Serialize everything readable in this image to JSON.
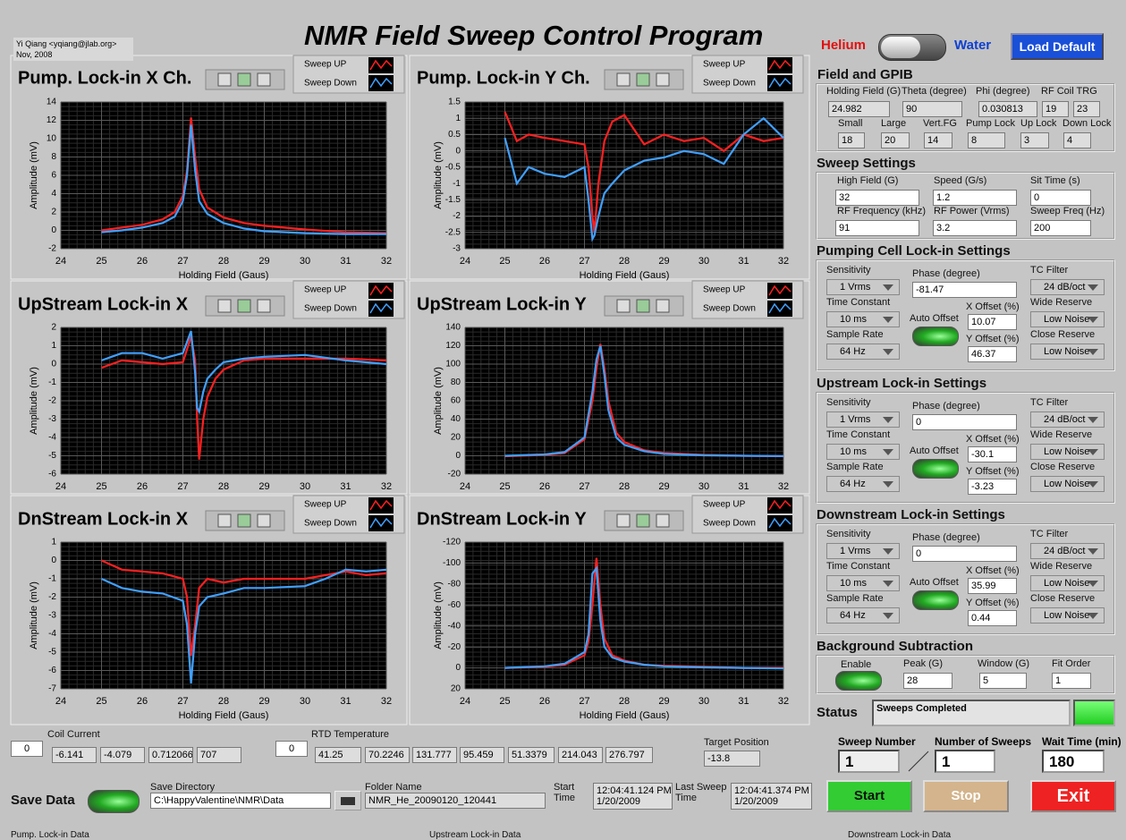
{
  "header": {
    "title": "NMR Field Sweep Control Program",
    "author": "Yi Qiang <yqiang@jlab.org>",
    "date": "Nov, 2008",
    "helium": "Helium",
    "water": "Water",
    "load_default": "Load Default"
  },
  "charts": [
    {
      "type": "line",
      "title": "Pump. Lock-in X Ch.",
      "xlabel": "Holding Field (Gaus)",
      "ylabel": "Amplitude (mV)",
      "x": [
        25,
        25.5,
        26,
        26.5,
        26.8,
        27,
        27.1,
        27.2,
        27.3,
        27.4,
        27.6,
        28,
        28.5,
        29,
        30,
        31,
        32
      ],
      "series": [
        {
          "name": "Sweep UP",
          "color": "#ff2020",
          "values": [
            0,
            0.3,
            0.6,
            1.2,
            2,
            3.8,
            6.5,
            12.3,
            8,
            4.5,
            2.5,
            1.4,
            0.8,
            0.5,
            0.1,
            -0.2,
            -0.3
          ]
        },
        {
          "name": "Sweep Down",
          "color": "#40a0ff",
          "values": [
            -0.2,
            0,
            0.3,
            0.8,
            1.5,
            3.2,
            6,
            11.5,
            6.5,
            3.2,
            1.8,
            0.8,
            0.2,
            -0.1,
            -0.3,
            -0.4,
            -0.4
          ]
        }
      ],
      "xlim": [
        24,
        32
      ],
      "ylim": [
        -2,
        14
      ],
      "xticks": [
        24,
        25,
        26,
        27,
        28,
        29,
        30,
        31,
        32
      ],
      "yticks": [
        -2,
        0,
        2,
        4,
        6,
        8,
        10,
        12,
        14
      ],
      "grid": true
    },
    {
      "type": "line",
      "title": "Pump. Lock-in Y Ch.",
      "xlabel": "Holding Field (Gaus)",
      "ylabel": "Amplitude (mV)",
      "x": [
        25,
        25.3,
        25.6,
        26,
        26.5,
        27,
        27.1,
        27.2,
        27.25,
        27.35,
        27.5,
        27.7,
        28,
        28.5,
        29,
        29.5,
        30,
        30.5,
        31,
        31.5,
        32
      ],
      "series": [
        {
          "name": "Sweep UP",
          "color": "#ff2020",
          "values": [
            1.2,
            0.3,
            0.5,
            0.4,
            0.3,
            0.2,
            -0.5,
            -2,
            -2.5,
            -1,
            0.3,
            0.9,
            1.1,
            0.2,
            0.5,
            0.3,
            0.4,
            0,
            0.5,
            0.3,
            0.4
          ]
        },
        {
          "name": "Sweep Down",
          "color": "#40a0ff",
          "values": [
            0.4,
            -1,
            -0.5,
            -0.7,
            -0.8,
            -0.5,
            -1.5,
            -2.7,
            -2.6,
            -2,
            -1.3,
            -1,
            -0.6,
            -0.3,
            -0.2,
            0,
            -0.1,
            -0.4,
            0.5,
            1,
            0.4
          ]
        }
      ],
      "xlim": [
        24,
        32
      ],
      "ylim": [
        -3,
        1.5
      ],
      "xticks": [
        24,
        25,
        26,
        27,
        28,
        29,
        30,
        31,
        32
      ],
      "yticks": [
        -3,
        -2.5,
        -2,
        -1.5,
        -1,
        -0.5,
        0,
        0.5,
        1,
        1.5
      ],
      "grid": true
    },
    {
      "type": "line",
      "title": "UpStream Lock-in X",
      "xlabel": "Holding Field (Gaus)",
      "ylabel": "Amplitude (mV)",
      "x": [
        25,
        25.5,
        26,
        26.5,
        27,
        27.1,
        27.2,
        27.3,
        27.35,
        27.4,
        27.5,
        27.6,
        27.8,
        28,
        28.5,
        29,
        30,
        31,
        32
      ],
      "series": [
        {
          "name": "Sweep UP",
          "color": "#ff2020",
          "values": [
            -0.2,
            0.2,
            0.1,
            0,
            0.1,
            0.8,
            1.5,
            0.2,
            -3,
            -5.2,
            -3,
            -1.8,
            -0.8,
            -0.3,
            0.2,
            0.3,
            0.3,
            0.3,
            0.2
          ]
        },
        {
          "name": "Sweep Down",
          "color": "#40a0ff",
          "values": [
            0.2,
            0.6,
            0.6,
            0.3,
            0.6,
            1.2,
            1.8,
            -0.5,
            -2.4,
            -2.6,
            -1.5,
            -0.8,
            -0.3,
            0.1,
            0.3,
            0.4,
            0.5,
            0.2,
            0
          ]
        }
      ],
      "xlim": [
        24,
        32
      ],
      "ylim": [
        -6,
        2
      ],
      "xticks": [
        24,
        25,
        26,
        27,
        28,
        29,
        30,
        31,
        32
      ],
      "yticks": [
        -6,
        -5,
        -4,
        -3,
        -2,
        -1,
        0,
        1,
        2
      ],
      "grid": true
    },
    {
      "type": "line",
      "title": "UpStream Lock-in Y",
      "xlabel": "Holding Field (Gaus)",
      "ylabel": "Amplitude (mV)",
      "x": [
        25,
        26,
        26.5,
        27,
        27.2,
        27.3,
        27.4,
        27.5,
        27.6,
        27.8,
        28,
        28.5,
        29,
        30,
        31,
        32
      ],
      "series": [
        {
          "name": "Sweep UP",
          "color": "#ff2020",
          "values": [
            -0.5,
            1,
            3,
            18,
            60,
            95,
            122,
            95,
            60,
            25,
            15,
            6,
            3,
            1,
            0,
            -0.5
          ]
        },
        {
          "name": "Sweep Down",
          "color": "#40a0ff",
          "values": [
            0,
            1.5,
            4,
            20,
            70,
            105,
            120,
            88,
            50,
            20,
            12,
            5,
            2,
            0.5,
            0,
            -0.3
          ]
        }
      ],
      "xlim": [
        24,
        32
      ],
      "ylim": [
        -20,
        140
      ],
      "xticks": [
        24,
        25,
        26,
        27,
        28,
        29,
        30,
        31,
        32
      ],
      "yticks": [
        -20,
        0,
        20,
        40,
        60,
        80,
        100,
        120,
        140
      ],
      "grid": true
    },
    {
      "type": "line",
      "title": "DnStream Lock-in X",
      "xlabel": "Holding Field (Gaus)",
      "ylabel": "Amplitude (mV)",
      "x": [
        25,
        25.5,
        26,
        26.5,
        27,
        27.1,
        27.2,
        27.3,
        27.4,
        27.6,
        28,
        28.5,
        29,
        30,
        30.5,
        31,
        31.5,
        32
      ],
      "series": [
        {
          "name": "Sweep UP",
          "color": "#ff2020",
          "values": [
            0,
            -0.5,
            -0.6,
            -0.7,
            -1,
            -2,
            -5.2,
            -3.5,
            -1.5,
            -1,
            -1.2,
            -1,
            -1,
            -1,
            -0.8,
            -0.6,
            -0.8,
            -0.7
          ]
        },
        {
          "name": "Sweep Down",
          "color": "#40a0ff",
          "values": [
            -1,
            -1.5,
            -1.7,
            -1.8,
            -2.2,
            -3.5,
            -6.7,
            -4,
            -2.5,
            -2,
            -1.8,
            -1.5,
            -1.5,
            -1.4,
            -1,
            -0.5,
            -0.6,
            -0.5
          ]
        }
      ],
      "xlim": [
        24,
        32
      ],
      "ylim": [
        -7,
        1
      ],
      "xticks": [
        24,
        25,
        26,
        27,
        28,
        29,
        30,
        31,
        32
      ],
      "yticks": [
        -7,
        -6,
        -5,
        -4,
        -3,
        -2,
        -1,
        0,
        1
      ],
      "grid": true
    },
    {
      "type": "line",
      "title": "DnStream Lock-in Y",
      "xlabel": "Holding Field (Gaus)",
      "ylabel": "Amplitude (mV)",
      "x": [
        25,
        26,
        26.5,
        27,
        27.1,
        27.2,
        27.3,
        27.4,
        27.5,
        27.7,
        28,
        28.5,
        29,
        30,
        31,
        32
      ],
      "series": [
        {
          "name": "Sweep UP",
          "color": "#ff2020",
          "values": [
            0,
            -1,
            -3,
            -12,
            -25,
            -60,
            -105,
            -60,
            -28,
            -12,
            -7,
            -3,
            -2,
            -1,
            0,
            0
          ]
        },
        {
          "name": "Sweep Down",
          "color": "#40a0ff",
          "values": [
            0,
            -1.5,
            -4,
            -15,
            -32,
            -90,
            -95,
            -45,
            -20,
            -10,
            -6,
            -3,
            -1.5,
            -0.5,
            0,
            0.5
          ]
        }
      ],
      "xlim": [
        24,
        32
      ],
      "ylim": [
        20,
        -120
      ],
      "xticks": [
        24,
        25,
        26,
        27,
        28,
        29,
        30,
        31,
        32
      ],
      "yticks": [
        -120,
        -100,
        -80,
        -60,
        -40,
        -20,
        0,
        20
      ],
      "grid": true
    }
  ],
  "field_gpib": {
    "title": "Field and GPIB",
    "holding_field": {
      "label": "Holding Field (G)",
      "value": "24.982"
    },
    "theta": {
      "label": "Theta (degree)",
      "value": "90"
    },
    "phi": {
      "label": "Phi (degree)",
      "value": "0.030813"
    },
    "rf_coil_trg": {
      "label": "RF Coil TRG",
      "values": [
        "19",
        "23"
      ]
    },
    "small": {
      "label": "Small",
      "value": "18"
    },
    "large": {
      "label": "Large",
      "value": "20"
    },
    "vert_fg": {
      "label": "Vert.FG",
      "value": "14"
    },
    "pump_lock": {
      "label": "Pump Lock",
      "value": "8"
    },
    "up_lock": {
      "label": "Up Lock",
      "value": "3"
    },
    "down_lock": {
      "label": "Down Lock",
      "value": "4"
    }
  },
  "sweep_settings": {
    "title": "Sweep Settings",
    "high_field": {
      "label": "High Field (G)",
      "value": "32"
    },
    "speed": {
      "label": "Speed (G/s)",
      "value": "1.2"
    },
    "sit_time": {
      "label": "Sit Time (s)",
      "value": "0"
    },
    "rf_frequency": {
      "label": "RF Frequency (kHz)",
      "value": "91"
    },
    "rf_power": {
      "label": "RF Power (Vrms)",
      "value": "3.2"
    },
    "sweep_freq": {
      "label": "Sweep Freq (Hz)",
      "value": "200"
    }
  },
  "lockins": [
    {
      "title": "Pumping Cell Lock-in Settings",
      "sensitivity": {
        "label": "Sensitivity",
        "value": "1 Vrms"
      },
      "phase": {
        "label": "Phase (degree)",
        "value": "-81.47"
      },
      "tc_filter": {
        "label": "TC Filter",
        "value": "24 dB/oct"
      },
      "time_constant": {
        "label": "Time Constant",
        "value": "10 ms"
      },
      "auto_offset": "Auto Offset",
      "x_offset": {
        "label": "X Offset (%)",
        "value": "10.07"
      },
      "wide_reserve": {
        "label": "Wide Reserve",
        "value": "Low Noise"
      },
      "sample_rate": {
        "label": "Sample Rate",
        "value": "64 Hz"
      },
      "y_offset": {
        "label": "Y Offset (%)",
        "value": "46.37"
      },
      "close_reserve": {
        "label": "Close Reserve",
        "value": "Low Noise"
      }
    },
    {
      "title": "Upstream Lock-in Settings",
      "sensitivity": {
        "label": "Sensitivity",
        "value": "1 Vrms"
      },
      "phase": {
        "label": "Phase (degree)",
        "value": "0"
      },
      "tc_filter": {
        "label": "TC Filter",
        "value": "24 dB/oct"
      },
      "time_constant": {
        "label": "Time Constant",
        "value": "10 ms"
      },
      "auto_offset": "Auto Offset",
      "x_offset": {
        "label": "X Offset (%)",
        "value": "-30.1"
      },
      "wide_reserve": {
        "label": "Wide Reserve",
        "value": "Low Noise"
      },
      "sample_rate": {
        "label": "Sample Rate",
        "value": "64 Hz"
      },
      "y_offset": {
        "label": "Y Offset (%)",
        "value": "-3.23"
      },
      "close_reserve": {
        "label": "Close Reserve",
        "value": "Low Noise"
      }
    },
    {
      "title": "Downstream Lock-in Settings",
      "sensitivity": {
        "label": "Sensitivity",
        "value": "1 Vrms"
      },
      "phase": {
        "label": "Phase (degree)",
        "value": "0"
      },
      "tc_filter": {
        "label": "TC Filter",
        "value": "24 dB/oct"
      },
      "time_constant": {
        "label": "Time Constant",
        "value": "10 ms"
      },
      "auto_offset": "Auto Offset",
      "x_offset": {
        "label": "X Offset (%)",
        "value": "35.99"
      },
      "wide_reserve": {
        "label": "Wide Reserve",
        "value": "Low Noise"
      },
      "sample_rate": {
        "label": "Sample Rate",
        "value": "64 Hz"
      },
      "y_offset": {
        "label": "Y Offset (%)",
        "value": "0.44"
      },
      "close_reserve": {
        "label": "Close Reserve",
        "value": "Low Noise"
      }
    }
  ],
  "background": {
    "title": "Background Subtraction",
    "enable": "Enable",
    "peak": {
      "label": "Peak (G)",
      "value": "28"
    },
    "window": {
      "label": "Window (G)",
      "value": "5"
    },
    "fit_order": {
      "label": "Fit Order",
      "value": "1"
    }
  },
  "status": {
    "label": "Status",
    "value": "Sweeps Completed"
  },
  "counters": {
    "sweep_number": {
      "label": "Sweep Number",
      "value": "1"
    },
    "number_of_sweeps": {
      "label": "Number of Sweeps",
      "value": "1"
    },
    "wait_time": {
      "label": "Wait Time (min)",
      "value": "180"
    }
  },
  "buttons": {
    "start": "Start",
    "stop": "Stop",
    "exit": "Exit"
  },
  "coil_current": {
    "label": "Coil Current",
    "index": "0",
    "values": [
      "-6.141",
      "-4.079",
      "0.712066",
      "707"
    ]
  },
  "rtd_temperature": {
    "label": "RTD Temperature",
    "index": "0",
    "values": [
      "41.25",
      "70.2246",
      "131.777",
      "95.459",
      "51.3379",
      "214.043",
      "276.797"
    ]
  },
  "target_position": {
    "label": "Target Position",
    "value": "-13.8"
  },
  "save": {
    "label": "Save Data",
    "directory_label": "Save Directory",
    "directory": "C:\\HappyValentine\\NMR\\Data",
    "folder_label": "Folder Name",
    "folder": "NMR_He_20090120_120441",
    "start_time_label": "Start Time",
    "start_time": [
      "12:04:41.124 PM",
      "1/20/2009"
    ],
    "last_sweep_label": "Last Sweep Time",
    "last_sweep_time": [
      "12:04:41.374 PM",
      "1/20/2009"
    ]
  },
  "footer": {
    "pump_data": "Pump. Lock-in Data",
    "upstream_data": "Upstream Lock-in Data",
    "downstream_data": "Downstream Lock-in Data"
  }
}
